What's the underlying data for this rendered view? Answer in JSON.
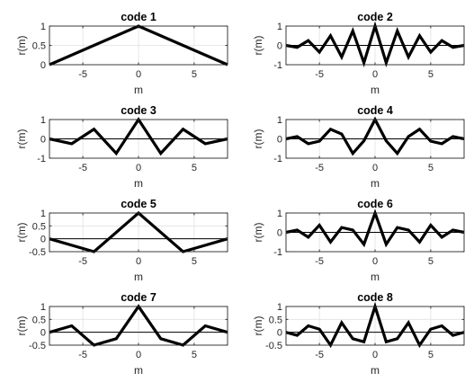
{
  "chart_data": [
    {
      "type": "line",
      "title": "code 1",
      "xlabel": "m",
      "ylabel": "r(m)",
      "xlim": [
        -8,
        8
      ],
      "ylim": [
        0,
        1
      ],
      "xticks": [
        -5,
        0,
        5
      ],
      "yticks": [
        0,
        0.5,
        1
      ],
      "ytick_labels": [
        "0",
        "0.5",
        "1"
      ],
      "zero_line": false,
      "grid": true,
      "series": [
        {
          "x": [
            -8,
            0,
            8
          ],
          "values": [
            0,
            1,
            0
          ]
        }
      ]
    },
    {
      "type": "line",
      "title": "code 2",
      "xlabel": "m",
      "ylabel": "r(m)",
      "xlim": [
        -8,
        8
      ],
      "ylim": [
        -1,
        1
      ],
      "xticks": [
        -5,
        0,
        5
      ],
      "yticks": [
        -1,
        0,
        1
      ],
      "ytick_labels": [
        "-1",
        "0",
        "1"
      ],
      "zero_line": true,
      "grid": true,
      "series": [
        {
          "x": [
            -8,
            -7,
            -6,
            -5,
            -4,
            -3,
            -2,
            -1,
            0,
            1,
            2,
            3,
            4,
            5,
            6,
            7,
            8
          ],
          "values": [
            0,
            -0.1,
            0.25,
            -0.35,
            0.5,
            -0.6,
            0.75,
            -0.9,
            1,
            -0.9,
            0.75,
            -0.6,
            0.5,
            -0.35,
            0.25,
            -0.1,
            0
          ]
        }
      ]
    },
    {
      "type": "line",
      "title": "code 3",
      "xlabel": "m",
      "ylabel": "r(m)",
      "xlim": [
        -8,
        8
      ],
      "ylim": [
        -1,
        1
      ],
      "xticks": [
        -5,
        0,
        5
      ],
      "yticks": [
        -1,
        0,
        1
      ],
      "ytick_labels": [
        "-1",
        "0",
        "1"
      ],
      "zero_line": true,
      "grid": true,
      "series": [
        {
          "x": [
            -8,
            -6,
            -4,
            -2,
            0,
            2,
            4,
            6,
            8
          ],
          "values": [
            0,
            -0.25,
            0.5,
            -0.75,
            1,
            -0.75,
            0.5,
            -0.25,
            0
          ]
        }
      ]
    },
    {
      "type": "line",
      "title": "code 4",
      "xlabel": "m",
      "ylabel": "r(m)",
      "xlim": [
        -8,
        8
      ],
      "ylim": [
        -1,
        1
      ],
      "xticks": [
        -5,
        0,
        5
      ],
      "yticks": [
        -1,
        0,
        1
      ],
      "ytick_labels": [
        "-1",
        "0",
        "1"
      ],
      "zero_line": true,
      "grid": true,
      "series": [
        {
          "x": [
            -8,
            -7,
            -6,
            -5,
            -4,
            -3,
            -2,
            -1,
            0,
            1,
            2,
            3,
            4,
            5,
            6,
            7,
            8
          ],
          "values": [
            0,
            0.12,
            -0.25,
            -0.12,
            0.5,
            0.25,
            -0.75,
            -0.1,
            1,
            -0.1,
            -0.75,
            0.12,
            0.5,
            -0.12,
            -0.25,
            0.12,
            0
          ]
        }
      ]
    },
    {
      "type": "line",
      "title": "code 5",
      "xlabel": "m",
      "ylabel": "r(m)",
      "xlim": [
        -8,
        8
      ],
      "ylim": [
        -0.5,
        1
      ],
      "xticks": [
        -5,
        0,
        5
      ],
      "yticks": [
        -0.5,
        0,
        0.5,
        1
      ],
      "ytick_labels": [
        "-0.5",
        "0",
        "0.5",
        "1"
      ],
      "zero_line": true,
      "grid": true,
      "series": [
        {
          "x": [
            -8,
            -4,
            0,
            4,
            8
          ],
          "values": [
            0,
            -0.5,
            1,
            -0.5,
            0
          ]
        }
      ]
    },
    {
      "type": "line",
      "title": "code 6",
      "xlabel": "m",
      "ylabel": "r(m)",
      "xlim": [
        -8,
        8
      ],
      "ylim": [
        -1,
        1
      ],
      "xticks": [
        -5,
        0,
        5
      ],
      "yticks": [
        -1,
        0,
        1
      ],
      "ytick_labels": [
        "-1",
        "0",
        "1"
      ],
      "zero_line": true,
      "grid": true,
      "series": [
        {
          "x": [
            -8,
            -7,
            -6,
            -5,
            -4,
            -3,
            -2,
            -1,
            0,
            1,
            2,
            3,
            4,
            5,
            6,
            7,
            8
          ],
          "values": [
            0,
            0.12,
            -0.25,
            0.37,
            -0.5,
            0.25,
            0.12,
            -0.62,
            1,
            -0.62,
            0.25,
            0.12,
            -0.5,
            0.37,
            -0.25,
            0.12,
            0
          ]
        }
      ]
    },
    {
      "type": "line",
      "title": "code 7",
      "xlabel": "m",
      "ylabel": "r(m)",
      "xlim": [
        -8,
        8
      ],
      "ylim": [
        -0.5,
        1
      ],
      "xticks": [
        -5,
        0,
        5
      ],
      "yticks": [
        -0.5,
        0,
        0.5,
        1
      ],
      "ytick_labels": [
        "-0.5",
        "0",
        "0.5",
        "1"
      ],
      "zero_line": true,
      "grid": true,
      "series": [
        {
          "x": [
            -8,
            -6,
            -4,
            -2,
            0,
            2,
            4,
            6,
            8
          ],
          "values": [
            0,
            0.25,
            -0.5,
            -0.25,
            1,
            -0.25,
            -0.5,
            0.25,
            0
          ]
        }
      ]
    },
    {
      "type": "line",
      "title": "code 8",
      "xlabel": "m",
      "ylabel": "r(m)",
      "xlim": [
        -8,
        8
      ],
      "ylim": [
        -0.5,
        1
      ],
      "xticks": [
        -5,
        0,
        5
      ],
      "yticks": [
        -0.5,
        0,
        0.5,
        1
      ],
      "ytick_labels": [
        "-0.5",
        "0",
        "0.5",
        "1"
      ],
      "zero_line": true,
      "grid": true,
      "series": [
        {
          "x": [
            -8,
            -7,
            -6,
            -5,
            -4,
            -3,
            -2,
            -1,
            0,
            1,
            2,
            3,
            4,
            5,
            6,
            7,
            8
          ],
          "values": [
            0,
            -0.12,
            0.25,
            0.12,
            -0.5,
            0.37,
            -0.25,
            -0.37,
            1,
            -0.37,
            -0.25,
            0.37,
            -0.5,
            0.12,
            0.25,
            -0.12,
            0
          ]
        }
      ]
    }
  ]
}
